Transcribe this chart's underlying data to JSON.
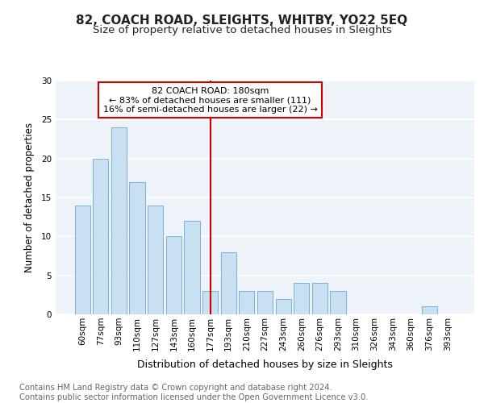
{
  "title": "82, COACH ROAD, SLEIGHTS, WHITBY, YO22 5EQ",
  "subtitle": "Size of property relative to detached houses in Sleights",
  "xlabel": "Distribution of detached houses by size in Sleights",
  "ylabel": "Number of detached properties",
  "categories": [
    "60sqm",
    "77sqm",
    "93sqm",
    "110sqm",
    "127sqm",
    "143sqm",
    "160sqm",
    "177sqm",
    "193sqm",
    "210sqm",
    "227sqm",
    "243sqm",
    "260sqm",
    "276sqm",
    "293sqm",
    "310sqm",
    "326sqm",
    "343sqm",
    "360sqm",
    "376sqm",
    "393sqm"
  ],
  "values": [
    14,
    20,
    24,
    17,
    14,
    10,
    12,
    3,
    8,
    3,
    3,
    2,
    4,
    4,
    3,
    0,
    0,
    0,
    0,
    1,
    0
  ],
  "bar_color": "#c9dff2",
  "bar_edge_color": "#7ab0d8",
  "red_line_index": 7,
  "annotation_line1": "82 COACH ROAD: 180sqm",
  "annotation_line2": "← 83% of detached houses are smaller (111)",
  "annotation_line3": "16% of semi-detached houses are larger (22) →",
  "annotation_box_facecolor": "#ffffff",
  "annotation_box_edgecolor": "#cc0000",
  "ylim": [
    0,
    30
  ],
  "yticks": [
    0,
    5,
    10,
    15,
    20,
    25,
    30
  ],
  "bg_color": "#eef2f9",
  "grid_color": "#ffffff",
  "footer_text": "Contains HM Land Registry data © Crown copyright and database right 2024.\nContains public sector information licensed under the Open Government Licence v3.0.",
  "title_fontsize": 11,
  "subtitle_fontsize": 9.5,
  "tick_fontsize": 7.5,
  "ylabel_fontsize": 8.5,
  "xlabel_fontsize": 9,
  "footer_fontsize": 7.2,
  "annotation_fontsize": 8
}
